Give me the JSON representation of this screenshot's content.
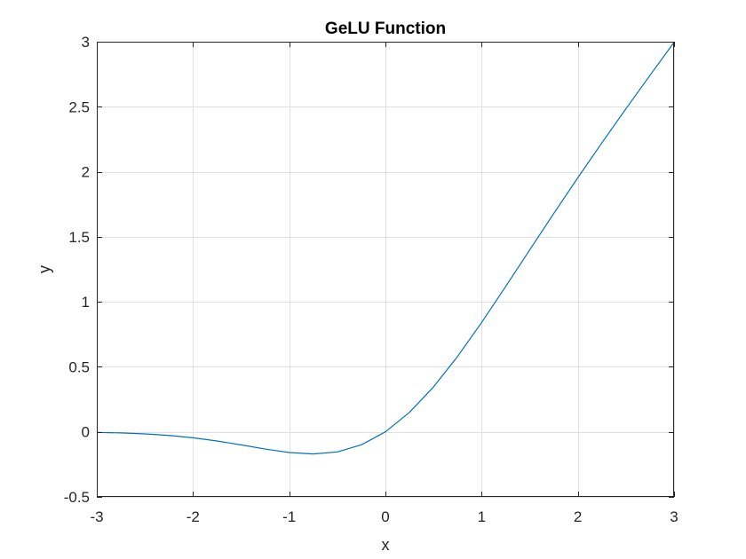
{
  "chart_data": {
    "type": "line",
    "title": "GeLU Function",
    "xlabel": "x",
    "ylabel": "y",
    "xlim": [
      -3,
      3
    ],
    "ylim": [
      -0.5,
      3
    ],
    "xticks": [
      -3,
      -2,
      -1,
      0,
      1,
      2,
      3
    ],
    "xtick_labels": [
      "-3",
      "-2",
      "-1",
      "0",
      "1",
      "2",
      "3"
    ],
    "yticks": [
      -0.5,
      0,
      0.5,
      1,
      1.5,
      2,
      2.5,
      3
    ],
    "ytick_labels": [
      "-0.5",
      "0",
      "0.5",
      "1",
      "1.5",
      "2",
      "2.5",
      "3"
    ],
    "grid": true,
    "series": [
      {
        "color": "#0072BD",
        "x": [
          -3,
          -2.75,
          -2.5,
          -2.25,
          -2,
          -1.75,
          -1.5,
          -1.25,
          -1,
          -0.75,
          -0.5,
          -0.25,
          0,
          0.25,
          0.5,
          0.75,
          1,
          1.25,
          1.5,
          1.75,
          2,
          2.25,
          2.5,
          2.75,
          3
        ],
        "y": [
          -0.004,
          -0.008,
          -0.0155,
          -0.0275,
          -0.0455,
          -0.0703,
          -0.1002,
          -0.132,
          -0.1588,
          -0.17,
          -0.1543,
          -0.0998,
          0,
          0.1502,
          0.3457,
          0.58,
          0.8412,
          1.118,
          1.3998,
          1.6797,
          1.9545,
          2.2225,
          2.4845,
          2.742,
          2.996
        ]
      }
    ]
  },
  "colors": {
    "line": "#0072BD",
    "grid": "#e0e0e0",
    "axes": "#262626",
    "background": "#ffffff"
  }
}
